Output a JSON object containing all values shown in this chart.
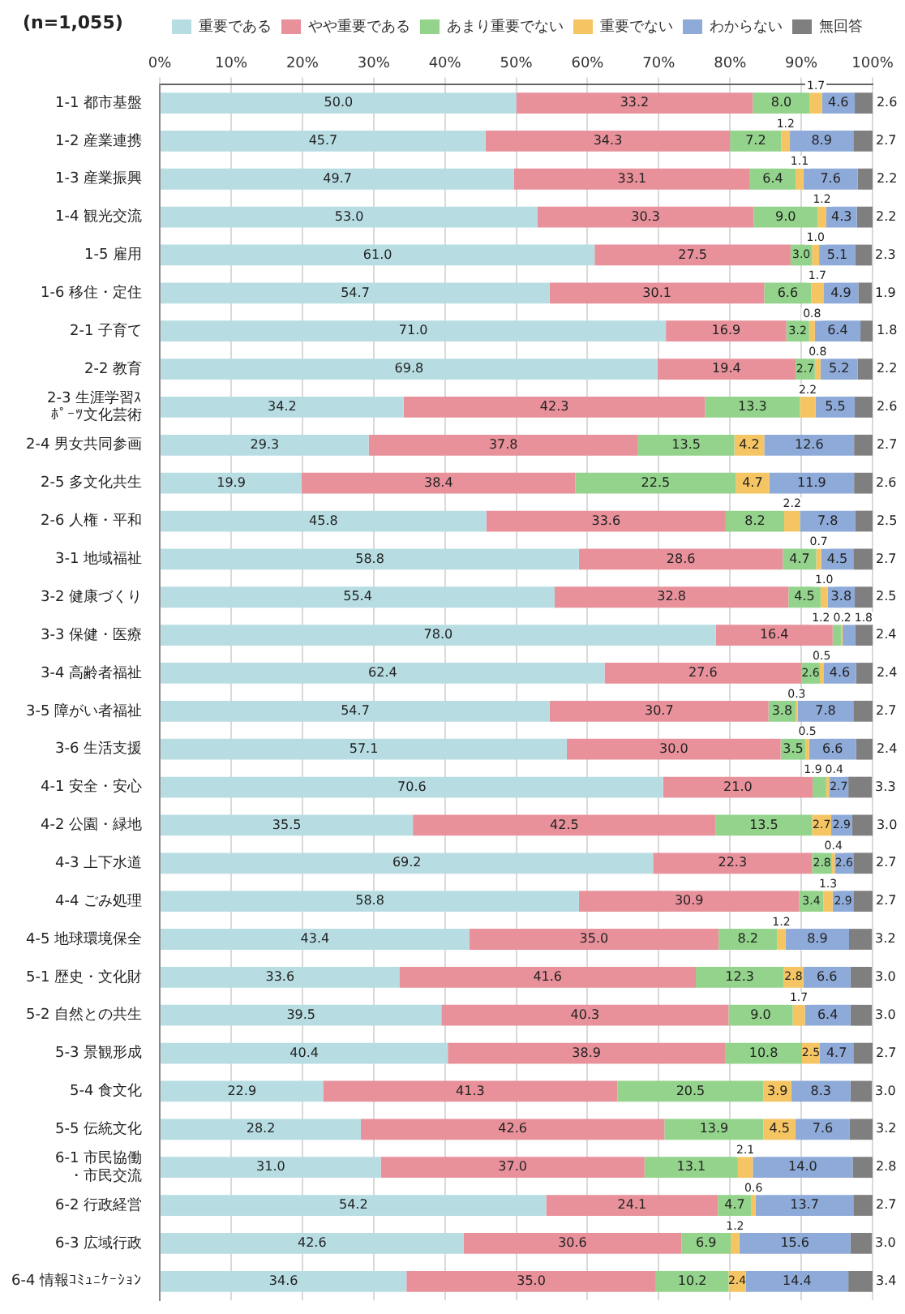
{
  "chart_data": {
    "type": "bar",
    "orientation": "horizontal",
    "stacked": true,
    "grid": "x",
    "legend": "top",
    "annotations": [
      "(n=1,055)"
    ],
    "xlim": [
      0,
      100
    ],
    "xticks": [
      {
        "value": 0,
        "label": "0%"
      },
      {
        "value": 10,
        "label": "10%"
      },
      {
        "value": 20,
        "label": "20%"
      },
      {
        "value": 30,
        "label": "30%"
      },
      {
        "value": 40,
        "label": "40%"
      },
      {
        "value": 50,
        "label": "50%"
      },
      {
        "value": 60,
        "label": "60%"
      },
      {
        "value": 70,
        "label": "70%"
      },
      {
        "value": 80,
        "label": "80%"
      },
      {
        "value": 90,
        "label": "90%"
      },
      {
        "value": 100,
        "label": "100%"
      }
    ],
    "categories": [
      "1-1 都市基盤",
      "1-2 産業連携",
      "1-3 産業振興",
      "1-4 観光交流",
      "1-5 雇用",
      "1-6 移住・定住",
      "2-1 子育て",
      "2-2 教育",
      "2-3 生涯学習ｽﾎﾟｰﾂ文化芸術",
      "2-4 男女共同参画",
      "2-5 多文化共生",
      "2-6 人権・平和",
      "3-1 地域福祉",
      "3-2 健康づくり",
      "3-3 保健・医療",
      "3-4 高齢者福祉",
      "3-5 障がい者福祉",
      "3-6 生活支援",
      "4-1 安全・安心",
      "4-2 公園・緑地",
      "4-3 上下水道",
      "4-4 ごみ処理",
      "4-5 地球環境保全",
      "5-1 歴史・文化財",
      "5-2 自然との共生",
      "5-3 景観形成",
      "5-4 食文化",
      "5-5 伝統文化",
      "6-1 市民協働・市民交流",
      "6-2 行政経営",
      "6-3 広域行政",
      "6-4 情報ｺﾐｭﾆｹｰｼｮﾝ"
    ],
    "series": [
      {
        "name": "重要である",
        "color": "#b7dde3",
        "values": [
          50.0,
          45.7,
          49.7,
          53.0,
          61.0,
          54.7,
          71.0,
          69.8,
          34.2,
          29.3,
          19.9,
          45.8,
          58.8,
          55.4,
          78.0,
          62.4,
          54.7,
          57.1,
          70.6,
          35.5,
          69.2,
          58.8,
          43.4,
          33.6,
          39.5,
          40.4,
          22.9,
          28.2,
          31.0,
          54.2,
          42.6,
          34.6
        ],
        "value_labels": [
          "50.0",
          "45.7",
          "49.7",
          "53.0",
          "61.0",
          "54.7",
          "71.0",
          "69.8",
          "34.2",
          "29.3",
          "19.9",
          "45.8",
          "58.8",
          "55.4",
          "78.0",
          "62.4",
          "54.7",
          "57.1",
          "70.6",
          "35.5",
          "69.2",
          "58.8",
          "43.4",
          "33.6",
          "39.5",
          "40.4",
          "22.9",
          "28.2",
          "31.0",
          "54.2",
          "42.6",
          "34.6"
        ]
      },
      {
        "name": "やや重要である",
        "color": "#e8919b",
        "values": [
          33.2,
          34.3,
          33.1,
          30.3,
          27.5,
          30.1,
          16.9,
          19.4,
          42.3,
          37.8,
          38.4,
          33.6,
          28.6,
          32.8,
          16.4,
          27.6,
          30.7,
          30.0,
          21.0,
          42.5,
          22.3,
          30.9,
          35.0,
          41.6,
          40.3,
          38.9,
          41.3,
          42.6,
          37.0,
          24.1,
          30.6,
          35.0
        ],
        "value_labels": [
          "33.2",
          "34.3",
          "33.1",
          "30.3",
          "27.5",
          "30.1",
          "16.9",
          "19.4",
          "42.3",
          "37.8",
          "38.4",
          "33.6",
          "28.6",
          "32.8",
          "16.4",
          "27.6",
          "30.7",
          "30.0",
          "21.0",
          "42.5",
          "22.3",
          "30.9",
          "35.0",
          "41.6",
          "40.3",
          "38.9",
          "41.3",
          "42.6",
          "37.0",
          "24.1",
          "30.6",
          "35.0"
        ]
      },
      {
        "name": "あまり重要でない",
        "color": "#93d38b",
        "values": [
          8.0,
          7.2,
          6.4,
          9.0,
          3.0,
          6.6,
          3.2,
          2.7,
          13.3,
          13.5,
          22.5,
          8.2,
          4.7,
          4.5,
          1.2,
          2.6,
          3.8,
          3.5,
          1.9,
          13.5,
          2.8,
          3.4,
          8.2,
          12.3,
          9.0,
          10.8,
          20.5,
          13.9,
          13.1,
          4.7,
          6.9,
          10.2
        ],
        "value_labels": [
          "8.0",
          "7.2",
          "6.4",
          "9.0",
          "3.0",
          "6.6",
          "3.2",
          "2.7",
          "13.3",
          "13.5",
          "22.5",
          "8.2",
          "4.7",
          "4.5",
          "1.2",
          "2.6",
          "3.8",
          "3.5",
          "1.9",
          "13.5",
          "2.8",
          "3.4",
          "8.2",
          "12.3",
          "9.0",
          "10.8",
          "20.5",
          "13.9",
          "13.1",
          "4.7",
          "6.9",
          "10.2"
        ]
      },
      {
        "name": "重要でない",
        "color": "#f5c564",
        "values": [
          1.7,
          1.2,
          1.1,
          1.2,
          1.0,
          1.7,
          0.8,
          0.8,
          2.2,
          4.2,
          4.7,
          2.2,
          0.7,
          1.0,
          0.2,
          0.5,
          0.3,
          0.5,
          0.4,
          2.7,
          0.4,
          1.3,
          1.2,
          2.8,
          1.7,
          2.5,
          3.9,
          4.5,
          2.1,
          0.6,
          1.2,
          2.4
        ],
        "value_labels": [
          "1.7",
          "1.2",
          "1.1",
          "1.2",
          "1.0",
          "1.7",
          "0.8",
          "0.8",
          "2.2",
          "4.2",
          "4.7",
          "2.2",
          "0.7",
          "1.0",
          "0.2",
          "0.5",
          "0.3",
          "0.5",
          "0.4",
          "2.7",
          "0.4",
          "1.3",
          "1.2",
          "2.8",
          "1.7",
          "2.5",
          "3.9",
          "4.5",
          "2.1",
          "0.6",
          "1.2",
          "2.4"
        ]
      },
      {
        "name": "わからない",
        "color": "#8eaad8",
        "values": [
          4.6,
          8.9,
          7.6,
          4.3,
          5.1,
          4.9,
          6.4,
          5.2,
          5.5,
          12.6,
          11.9,
          7.8,
          4.5,
          3.8,
          1.8,
          4.6,
          7.8,
          6.6,
          2.7,
          2.9,
          2.6,
          2.9,
          8.9,
          6.6,
          6.4,
          4.7,
          8.3,
          7.6,
          14.0,
          13.7,
          15.6,
          14.4
        ],
        "value_labels": [
          "4.6",
          "8.9",
          "7.6",
          "4.3",
          "5.1",
          "4.9",
          "6.4",
          "5.2",
          "5.5",
          "12.6",
          "11.9",
          "7.8",
          "4.5",
          "3.8",
          "1.8",
          "4.6",
          "7.8",
          "6.6",
          "2.7",
          "2.9",
          "2.6",
          "2.9",
          "8.9",
          "6.6",
          "6.4",
          "4.7",
          "8.3",
          "7.6",
          "14.0",
          "13.7",
          "15.6",
          "14.4"
        ]
      },
      {
        "name": "無回答",
        "color": "#7f7f7f",
        "values": [
          2.6,
          2.7,
          2.2,
          2.2,
          2.3,
          1.9,
          1.8,
          2.2,
          2.6,
          2.7,
          2.6,
          2.5,
          2.7,
          2.5,
          2.4,
          2.4,
          2.7,
          2.4,
          3.3,
          3.0,
          2.7,
          2.7,
          3.2,
          3.0,
          3.0,
          2.7,
          3.0,
          3.2,
          2.8,
          2.7,
          3.0,
          3.4
        ],
        "value_labels": [
          "2.6",
          "2.7",
          "2.2",
          "2.2",
          "2.3",
          "1.9",
          "1.8",
          "2.2",
          "2.6",
          "2.7",
          "2.6",
          "2.5",
          "2.7",
          "2.5",
          "2.4",
          "2.4",
          "2.7",
          "2.4",
          "3.3",
          "3.0",
          "2.7",
          "2.7",
          "3.2",
          "3.0",
          "3.0",
          "2.7",
          "3.0",
          "3.2",
          "2.8",
          "2.7",
          "3.0",
          "3.4"
        ]
      }
    ]
  }
}
